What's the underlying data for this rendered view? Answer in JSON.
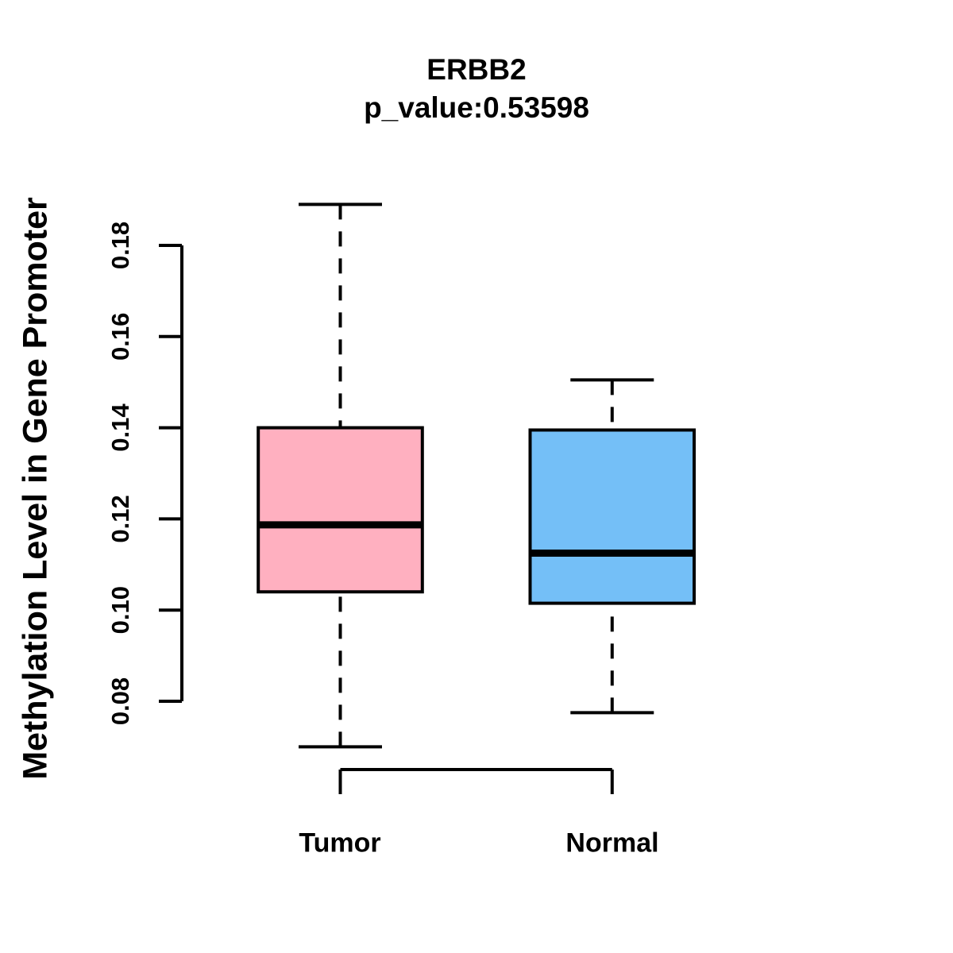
{
  "chart_data": {
    "type": "boxplot",
    "title": "ERBB2",
    "subtitle": "p_value:0.53598",
    "ylabel": "Methylation Level in Gene Promoter",
    "xlabel": "",
    "ylim": [
      0.08,
      0.18
    ],
    "y_ticks": [
      0.08,
      0.1,
      0.12,
      0.14,
      0.16,
      0.18
    ],
    "y_tick_labels": [
      "0.08",
      "0.10",
      "0.12",
      "0.14",
      "0.16",
      "0.18"
    ],
    "categories": [
      "Tumor",
      "Normal"
    ],
    "series": [
      {
        "name": "Tumor",
        "fill_color": "#FFB0C0",
        "whisker_low": 0.07,
        "q1": 0.104,
        "median": 0.1187,
        "q3": 0.14,
        "whisker_high": 0.189
      },
      {
        "name": "Normal",
        "fill_color": "#74BFF7",
        "whisker_low": 0.0775,
        "q1": 0.1015,
        "median": 0.1125,
        "q3": 0.1395,
        "whisker_high": 0.1505
      }
    ],
    "colors": {
      "stroke": "#000000",
      "background": "#FFFFFF",
      "tumor_fill": "#FFB0C0",
      "normal_fill": "#74BFF7"
    },
    "whisker_line_style": "dashed",
    "grid": false,
    "legend": false
  }
}
